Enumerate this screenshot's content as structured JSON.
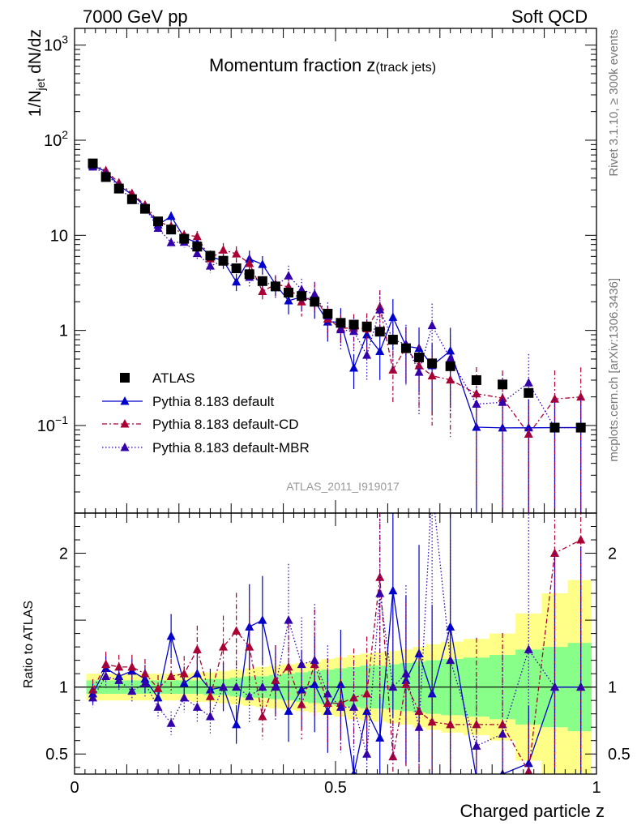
{
  "header": {
    "left": "7000 GeV pp",
    "right": "Soft QCD"
  },
  "side_text": {
    "rivet": "Rivet 3.1.10, ≥ 300k events",
    "mcplots": "mcplots.cern.ch [arXiv:1306.3436]"
  },
  "chart_data": {
    "type": "scatter",
    "title_main": "Momentum fraction ",
    "title_var": "z",
    "title_sub": "(track jets)",
    "analysis_id": "ATLAS_2011_I919017",
    "ylabel": "1/N",
    "ylabel_sub": "jet",
    "ylabel_suffix": " dN/dz",
    "ratio_ylabel": "Ratio to ATLAS",
    "xlabel": "Charged particle z",
    "xlim": [
      0,
      1
    ],
    "ylim": [
      0.012,
      1500
    ],
    "yscale": "log",
    "ratio_ylim": [
      0.35,
      2.3
    ],
    "x_tick_labels": [
      "0",
      "0.5",
      "1"
    ],
    "y_tick_labels": [
      {
        "v": 1000,
        "base": "10",
        "exp": "3"
      },
      {
        "v": 100,
        "base": "10",
        "exp": "2"
      },
      {
        "v": 10,
        "base": "10",
        "exp": ""
      },
      {
        "v": 1,
        "base": "1",
        "exp": ""
      },
      {
        "v": 0.1,
        "base": "10",
        "exp": "−1"
      }
    ],
    "ratio_tick_labels": [
      {
        "v": 0.5,
        "label": "0.5"
      },
      {
        "v": 1,
        "label": "1"
      },
      {
        "v": 2,
        "label": "2"
      }
    ],
    "x": [
      0.035,
      0.06,
      0.085,
      0.11,
      0.135,
      0.16,
      0.185,
      0.21,
      0.235,
      0.26,
      0.285,
      0.31,
      0.335,
      0.36,
      0.385,
      0.41,
      0.435,
      0.46,
      0.485,
      0.51,
      0.535,
      0.56,
      0.585,
      0.61,
      0.635,
      0.66,
      0.685,
      0.72,
      0.77,
      0.82,
      0.87,
      0.92,
      0.97
    ],
    "series": [
      {
        "name": "ATLAS",
        "color": "#000000",
        "marker": "square",
        "values": [
          57,
          41,
          31,
          24,
          19,
          14,
          11.5,
          9.2,
          7.6,
          6.1,
          5.4,
          4.5,
          3.9,
          3.3,
          2.9,
          2.5,
          2.3,
          2.0,
          1.5,
          1.2,
          1.15,
          1.1,
          0.97,
          0.8,
          0.65,
          0.52,
          0.45,
          0.42,
          0.3,
          0.27,
          0.22,
          0.095,
          0.095
        ],
        "band_inner": [
          0.05,
          0.05,
          0.05,
          0.05,
          0.05,
          0.05,
          0.05,
          0.05,
          0.05,
          0.06,
          0.06,
          0.07,
          0.08,
          0.08,
          0.09,
          0.1,
          0.11,
          0.12,
          0.13,
          0.14,
          0.15,
          0.16,
          0.16,
          0.17,
          0.18,
          0.19,
          0.2,
          0.21,
          0.22,
          0.24,
          0.28,
          0.3,
          0.33
        ],
        "band_outer": [
          0.1,
          0.1,
          0.1,
          0.1,
          0.1,
          0.1,
          0.1,
          0.1,
          0.11,
          0.11,
          0.12,
          0.13,
          0.14,
          0.15,
          0.16,
          0.17,
          0.18,
          0.19,
          0.21,
          0.22,
          0.24,
          0.25,
          0.26,
          0.27,
          0.28,
          0.3,
          0.32,
          0.34,
          0.36,
          0.4,
          0.55,
          0.7,
          0.8
        ]
      },
      {
        "name": "Pythia 8.183 default",
        "color": "#0000cc",
        "marker": "triangle",
        "line": "solid",
        "ratio": [
          0.95,
          1.14,
          1.08,
          1.12,
          1.06,
          0.92,
          1.38,
          1.03,
          1.1,
          0.98,
          1.0,
          0.72,
          1.45,
          1.5,
          1.05,
          0.82,
          0.98,
          1.02,
          0.82,
          1.02,
          0.35,
          0.82,
          0.62,
          1.72,
          1.05,
          1.25,
          0.95,
          1.45,
          0.32,
          0.35,
          0.43,
          1.0,
          1.0
        ],
        "err": [
          0.08,
          0.08,
          0.08,
          0.08,
          0.1,
          0.1,
          0.12,
          0.12,
          0.14,
          0.16,
          0.18,
          0.2,
          0.22,
          0.22,
          0.25,
          0.28,
          0.3,
          0.35,
          0.38,
          0.4,
          0.4,
          0.45,
          0.5,
          0.55,
          0.6,
          0.65,
          0.7,
          0.75,
          0.9,
          0.95,
          1.0,
          1.0,
          1.05
        ]
      },
      {
        "name": "Pythia 8.183 default-CD",
        "color": "#aa0033",
        "marker": "triangle",
        "line": "dashdot",
        "ratio": [
          0.98,
          1.17,
          1.15,
          1.15,
          1.1,
          0.99,
          1.08,
          1.1,
          1.28,
          0.93,
          1.3,
          1.42,
          1.3,
          0.78,
          1.05,
          1.15,
          0.87,
          1.17,
          0.88,
          0.88,
          0.92,
          0.95,
          1.82,
          0.48,
          1.02,
          0.82,
          0.74,
          0.72,
          0.72,
          0.72,
          0.37,
          2.0,
          2.1
        ],
        "err": [
          0.08,
          0.08,
          0.08,
          0.08,
          0.1,
          0.1,
          0.12,
          0.12,
          0.14,
          0.16,
          0.18,
          0.2,
          0.22,
          0.22,
          0.25,
          0.28,
          0.3,
          0.35,
          0.38,
          0.4,
          0.4,
          0.45,
          0.5,
          0.55,
          0.6,
          0.65,
          0.7,
          0.75,
          0.9,
          0.95,
          1.0,
          1.0,
          1.05
        ]
      },
      {
        "name": "Pythia 8.183 default-MBR",
        "color": "#3300aa",
        "marker": "triangle",
        "line": "dotted",
        "ratio": [
          0.92,
          1.08,
          1.05,
          0.97,
          1.03,
          0.85,
          0.73,
          0.92,
          0.85,
          0.78,
          1.0,
          1.0,
          0.93,
          1.0,
          1.0,
          1.5,
          1.17,
          1.2,
          0.95,
          0.85,
          0.85,
          0.5,
          1.7,
          1.0,
          1.1,
          0.7,
          2.5,
          1.2,
          0.56,
          0.65,
          1.28,
          1.0,
          1.0
        ],
        "err": [
          0.08,
          0.08,
          0.08,
          0.08,
          0.1,
          0.1,
          0.12,
          0.12,
          0.14,
          0.16,
          0.18,
          0.2,
          0.22,
          0.22,
          0.25,
          0.28,
          0.3,
          0.35,
          0.38,
          0.4,
          0.4,
          0.45,
          0.5,
          0.55,
          0.6,
          0.65,
          0.7,
          0.75,
          0.9,
          0.95,
          1.0,
          1.0,
          1.05
        ]
      }
    ],
    "legend_position": "lower-left",
    "band_colors": {
      "outer": "#ffff88",
      "inner": "#88ff88"
    }
  }
}
